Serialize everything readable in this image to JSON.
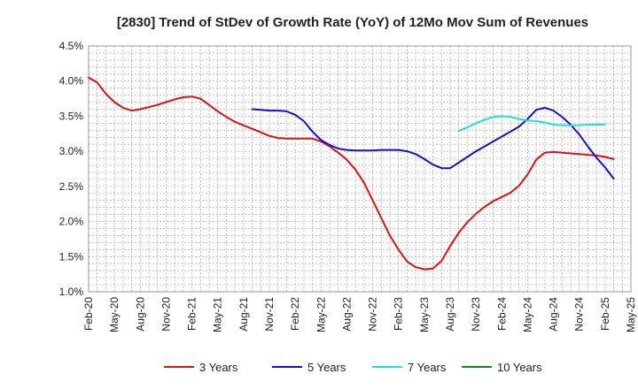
{
  "chart_data": {
    "type": "line",
    "title": "[2830]  Trend of StDev of Growth Rate (YoY) of 12Mo Mov Sum of Revenues",
    "xlabel": "",
    "ylabel": "",
    "ylim": [
      1.0,
      4.5
    ],
    "y_ticks": [
      "1.0%",
      "1.5%",
      "2.0%",
      "2.5%",
      "3.0%",
      "3.5%",
      "4.0%",
      "4.5%"
    ],
    "y_tick_values": [
      1.0,
      1.5,
      2.0,
      2.5,
      3.0,
      3.5,
      4.0,
      4.5
    ],
    "x_ticks": [
      "Feb-20",
      "May-20",
      "Aug-20",
      "Nov-20",
      "Feb-21",
      "May-21",
      "Aug-21",
      "Nov-21",
      "Feb-22",
      "May-22",
      "Aug-22",
      "Nov-22",
      "Feb-23",
      "May-23",
      "Aug-23",
      "Nov-23",
      "Feb-24",
      "May-24",
      "Aug-24",
      "Nov-24",
      "Feb-25",
      "May-25"
    ],
    "x_range_months": [
      0,
      63
    ],
    "grid": true,
    "legend_position": "bottom",
    "series": [
      {
        "name": "3 Years",
        "color": "#dd1111",
        "start_month": 0,
        "values": [
          4.05,
          3.98,
          3.82,
          3.7,
          3.62,
          3.58,
          3.6,
          3.63,
          3.66,
          3.7,
          3.74,
          3.77,
          3.78,
          3.75,
          3.66,
          3.57,
          3.49,
          3.42,
          3.37,
          3.32,
          3.27,
          3.22,
          3.19,
          3.18,
          3.18,
          3.18,
          3.18,
          3.14,
          3.07,
          2.98,
          2.88,
          2.74,
          2.55,
          2.3,
          2.05,
          1.8,
          1.6,
          1.43,
          1.35,
          1.32,
          1.33,
          1.44,
          1.65,
          1.84,
          1.99,
          2.11,
          2.21,
          2.29,
          2.35,
          2.41,
          2.51,
          2.67,
          2.88,
          2.98,
          2.99,
          2.98,
          2.97,
          2.96,
          2.95,
          2.94,
          2.92,
          2.89
        ]
      },
      {
        "name": "5 Years",
        "color": "#1111cc",
        "start_month": 19,
        "values": [
          3.6,
          3.59,
          3.58,
          3.58,
          3.57,
          3.52,
          3.43,
          3.28,
          3.16,
          3.09,
          3.04,
          3.02,
          3.01,
          3.01,
          3.01,
          3.02,
          3.02,
          3.02,
          3.0,
          2.96,
          2.89,
          2.81,
          2.76,
          2.76,
          2.84,
          2.92,
          3.0,
          3.07,
          3.14,
          3.21,
          3.28,
          3.35,
          3.46,
          3.59,
          3.62,
          3.58,
          3.49,
          3.38,
          3.24,
          3.07,
          2.91,
          2.77,
          2.61
        ]
      },
      {
        "name": "7 Years",
        "color": "#22dddd",
        "start_month": 43,
        "values": [
          3.29,
          3.34,
          3.4,
          3.45,
          3.49,
          3.5,
          3.49,
          3.46,
          3.44,
          3.43,
          3.41,
          3.38,
          3.37,
          3.37,
          3.37,
          3.38,
          3.38,
          3.38
        ]
      },
      {
        "name": "10 Years",
        "color": "#118811",
        "start_month": 0,
        "values": []
      }
    ]
  }
}
